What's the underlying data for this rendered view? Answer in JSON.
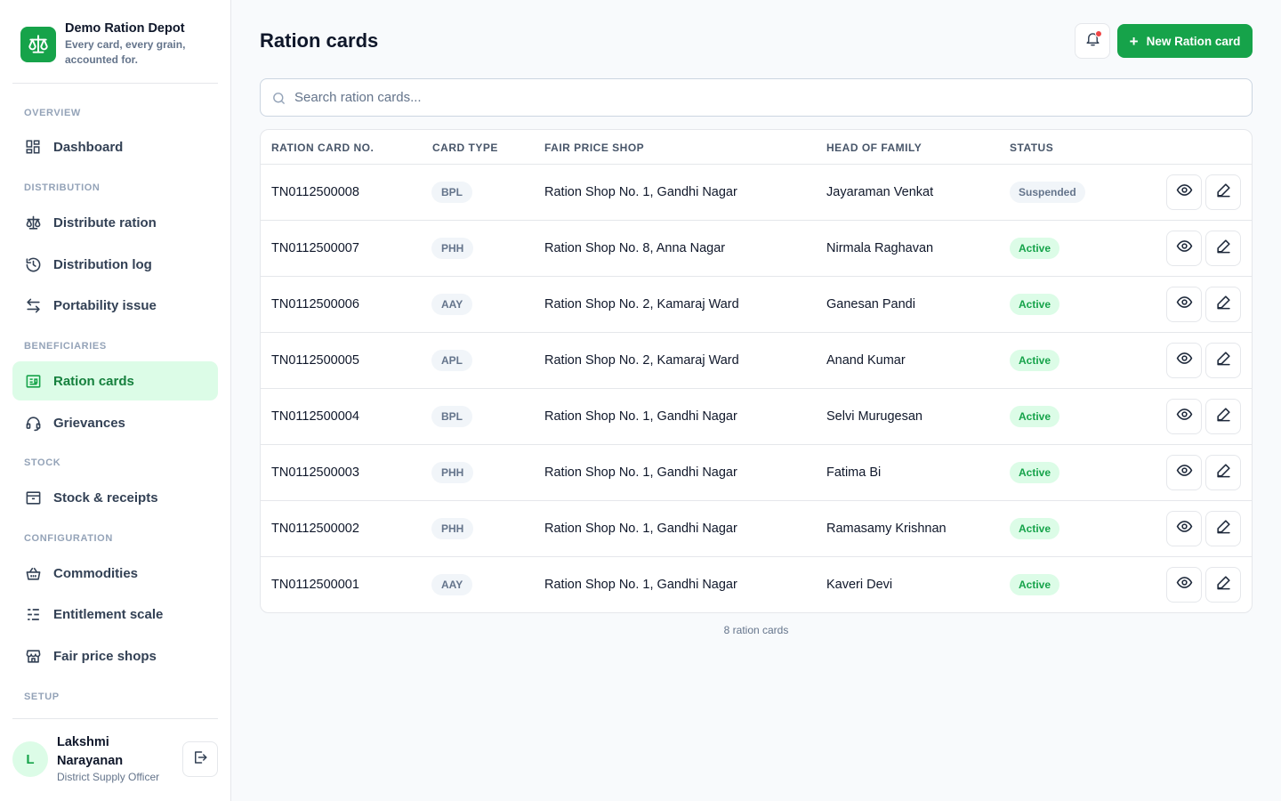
{
  "brand": {
    "name": "Demo Ration Depot",
    "tagline": "Every card, every grain, accounted for."
  },
  "sidebar": {
    "sections": [
      {
        "label": "OVERVIEW"
      },
      {
        "label": "DISTRIBUTION"
      },
      {
        "label": "BENEFICIARIES"
      },
      {
        "label": "STOCK"
      },
      {
        "label": "CONFIGURATION"
      },
      {
        "label": "SETUP"
      }
    ],
    "items": [
      {
        "label": "Dashboard",
        "icon": "dashboard-icon"
      },
      {
        "label": "Distribute ration",
        "icon": "scale-icon"
      },
      {
        "label": "Distribution log",
        "icon": "history-icon"
      },
      {
        "label": "Portability issue",
        "icon": "swap-icon"
      },
      {
        "label": "Ration cards",
        "icon": "id-card-icon",
        "active": true
      },
      {
        "label": "Grievances",
        "icon": "headset-icon"
      },
      {
        "label": "Stock & receipts",
        "icon": "archive-icon"
      },
      {
        "label": "Commodities",
        "icon": "basket-icon"
      },
      {
        "label": "Entitlement scale",
        "icon": "list-icon"
      },
      {
        "label": "Fair price shops",
        "icon": "store-icon"
      }
    ]
  },
  "user": {
    "initial": "L",
    "name": "Lakshmi Narayanan",
    "role": "District Supply Officer"
  },
  "header": {
    "title": "Ration cards",
    "new_button": "New Ration card"
  },
  "search": {
    "placeholder": "Search ration cards..."
  },
  "table": {
    "columns": [
      "RATION CARD NO.",
      "CARD TYPE",
      "FAIR PRICE SHOP",
      "HEAD OF FAMILY",
      "STATUS"
    ],
    "rows": [
      {
        "card_no": "TN0112500008",
        "type": "BPL",
        "shop": "Ration Shop No. 1, Gandhi Nagar",
        "head": "Jayaraman Venkat",
        "status": "Suspended"
      },
      {
        "card_no": "TN0112500007",
        "type": "PHH",
        "shop": "Ration Shop No. 8, Anna Nagar",
        "head": "Nirmala Raghavan",
        "status": "Active"
      },
      {
        "card_no": "TN0112500006",
        "type": "AAY",
        "shop": "Ration Shop No. 2, Kamaraj Ward",
        "head": "Ganesan Pandi",
        "status": "Active"
      },
      {
        "card_no": "TN0112500005",
        "type": "APL",
        "shop": "Ration Shop No. 2, Kamaraj Ward",
        "head": "Anand Kumar",
        "status": "Active"
      },
      {
        "card_no": "TN0112500004",
        "type": "BPL",
        "shop": "Ration Shop No. 1, Gandhi Nagar",
        "head": "Selvi Murugesan",
        "status": "Active"
      },
      {
        "card_no": "TN0112500003",
        "type": "PHH",
        "shop": "Ration Shop No. 1, Gandhi Nagar",
        "head": "Fatima Bi",
        "status": "Active"
      },
      {
        "card_no": "TN0112500002",
        "type": "PHH",
        "shop": "Ration Shop No. 1, Gandhi Nagar",
        "head": "Ramasamy Krishnan",
        "status": "Active"
      },
      {
        "card_no": "TN0112500001",
        "type": "AAY",
        "shop": "Ration Shop No. 1, Gandhi Nagar",
        "head": "Kaveri Devi",
        "status": "Active"
      }
    ]
  },
  "footer": {
    "count_text": "8 ration cards"
  },
  "colors": {
    "accent": "#16a34a",
    "accent_light": "#dcfce7",
    "danger": "#ef4444"
  }
}
